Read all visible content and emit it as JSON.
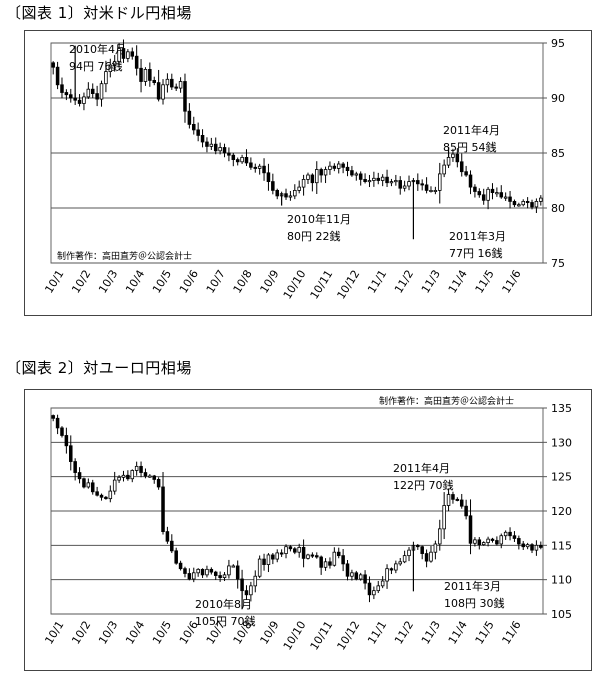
{
  "figure1": {
    "title": "〔図表 1〕対米ドル円相場",
    "credit": "制作著作：高田直芳＠公認会計士"
  },
  "figure2": {
    "title": "〔図表 2〕対ユーロ円相場",
    "credit": "制作著作：高田直芳＠公認会計士"
  },
  "chart_data": [
    {
      "type": "candlestick",
      "title": "〔図表 1〕対米ドル円相場",
      "categories": [
        "10/1",
        "10/2",
        "10/3",
        "10/4",
        "10/5",
        "10/6",
        "10/7",
        "10/8",
        "10/9",
        "10/10",
        "10/11",
        "10/12",
        "11/1",
        "11/2",
        "11/3",
        "11/4",
        "11/5",
        "11/6"
      ],
      "ylim": [
        75,
        95
      ],
      "yticks": [
        75,
        80,
        85,
        90,
        95
      ],
      "grid": true,
      "close": [
        92.8,
        91.2,
        90.5,
        90.3,
        90.0,
        89.8,
        89.5,
        90.1,
        90.8,
        90.4,
        89.9,
        91.3,
        92.4,
        93.0,
        93.3,
        94.5,
        93.6,
        94.2,
        93.8,
        92.7,
        91.5,
        92.6,
        91.6,
        91.4,
        89.9,
        91.2,
        91.7,
        91.0,
        90.9,
        91.5,
        88.8,
        87.6,
        87.1,
        86.6,
        86.0,
        85.6,
        85.8,
        85.2,
        85.5,
        85.0,
        84.8,
        84.4,
        84.2,
        84.6,
        84.1,
        83.7,
        83.6,
        83.8,
        83.2,
        82.4,
        81.6,
        81.1,
        81.3,
        81.0,
        81.1,
        81.6,
        81.9,
        82.6,
        83.0,
        82.3,
        83.5,
        83.0,
        83.5,
        83.8,
        83.6,
        84.0,
        83.7,
        83.4,
        83.0,
        83.1,
        82.6,
        82.4,
        82.5,
        82.7,
        82.5,
        82.8,
        82.3,
        82.4,
        82.5,
        81.8,
        82.0,
        82.4,
        82.5,
        82.2,
        82.1,
        81.6,
        81.6,
        81.6,
        83.1,
        83.9,
        84.6,
        84.9,
        84.2,
        83.3,
        83.0,
        81.9,
        81.5,
        81.2,
        80.7,
        81.7,
        81.4,
        81.4,
        81.0,
        81.0,
        80.6,
        80.3,
        80.3,
        80.6,
        80.5,
        80.1,
        80.6,
        80.9
      ],
      "annotations": [
        {
          "lines": [
            "2010年4月",
            "94円 76銭"
          ],
          "x": 5,
          "y": 94.76
        },
        {
          "lines": [
            "2011年4月",
            "85円 54銭"
          ],
          "x": 90,
          "y": 85.54
        },
        {
          "lines": [
            "2010年11月",
            "80円 22銭"
          ],
          "x": 52,
          "y": 80.22
        },
        {
          "lines": [
            "2011年3月",
            "77円 16銭"
          ],
          "x": 82,
          "y": 77.16
        }
      ]
    },
    {
      "type": "candlestick",
      "title": "〔図表 2〕対ユーロ円相場",
      "categories": [
        "10/1",
        "10/2",
        "10/3",
        "10/4",
        "10/5",
        "10/6",
        "10/7",
        "10/8",
        "10/9",
        "10/10",
        "10/11",
        "10/12",
        "11/1",
        "11/2",
        "11/3",
        "11/4",
        "11/5",
        "11/6"
      ],
      "ylim": [
        105,
        135
      ],
      "yticks": [
        105,
        110,
        115,
        120,
        125,
        130,
        135
      ],
      "grid": true,
      "close": [
        133.5,
        132.1,
        131.0,
        129.5,
        127.2,
        125.6,
        124.7,
        123.5,
        124.1,
        122.8,
        122.3,
        122.0,
        121.8,
        122.9,
        124.5,
        124.9,
        125.2,
        124.7,
        125.9,
        126.5,
        125.6,
        125.1,
        125.1,
        124.6,
        123.5,
        117.0,
        115.6,
        114.2,
        112.4,
        111.6,
        110.9,
        110.1,
        111.0,
        111.5,
        110.7,
        111.5,
        111.1,
        110.6,
        110.3,
        110.7,
        112.0,
        112.0,
        110.1,
        108.4,
        107.8,
        109.1,
        110.5,
        113.0,
        112.2,
        113.6,
        113.0,
        113.9,
        113.8,
        114.8,
        114.5,
        114.0,
        114.7,
        113.1,
        113.6,
        113.5,
        113.3,
        111.8,
        112.6,
        112.1,
        114.0,
        113.5,
        112.3,
        110.5,
        111.0,
        110.1,
        110.7,
        109.5,
        107.8,
        108.4,
        109.1,
        109.8,
        111.6,
        111.4,
        112.3,
        112.6,
        113.5,
        114.3,
        115.0,
        114.8,
        113.8,
        112.7,
        114.0,
        115.2,
        117.4,
        120.8,
        122.4,
        121.7,
        121.6,
        120.7,
        119.3,
        115.3,
        115.8,
        115.1,
        115.4,
        115.9,
        115.7,
        115.2,
        116.4,
        116.9,
        116.4,
        116.0,
        115.2,
        114.8,
        115.1,
        114.3,
        115.0,
        114.7
      ],
      "annotations": [
        {
          "lines": [
            "2011年4月",
            "122円 70銭"
          ],
          "x": 90,
          "y": 122.7
        },
        {
          "lines": [
            "2010年8月",
            "105円 70銭"
          ],
          "x": 43,
          "y": 105.7
        },
        {
          "lines": [
            "2011年3月",
            "108円 30銭"
          ],
          "x": 82,
          "y": 108.3
        }
      ]
    }
  ]
}
